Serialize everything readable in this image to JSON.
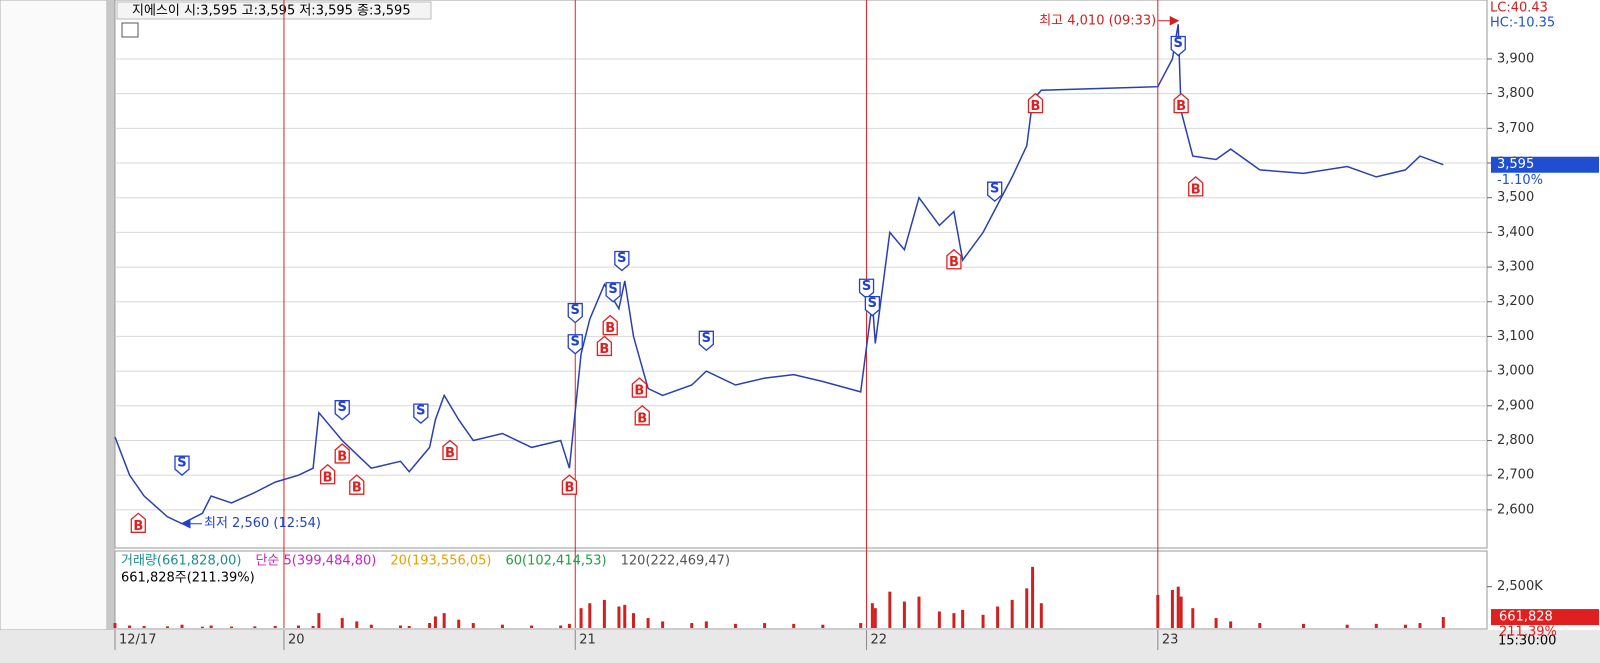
{
  "chart_data": {
    "type": "line",
    "title": "지에스이 시:3,595 고:3,595 저:3,595 종:3,595",
    "color": "#2a3fb0",
    "xlim": [
      0.42,
      5.13
    ],
    "xticks": [
      {
        "value": 0.42,
        "label": "12/17"
      },
      {
        "value": 1,
        "label": "20"
      },
      {
        "value": 2,
        "label": "21"
      },
      {
        "value": 3,
        "label": "22"
      },
      {
        "value": 4,
        "label": "23"
      }
    ],
    "ylim": [
      2490,
      4070
    ],
    "yticks": [
      {
        "value": 2600,
        "label": "2,600"
      },
      {
        "value": 2700,
        "label": "2,700"
      },
      {
        "value": 2800,
        "label": "2,800"
      },
      {
        "value": 2900,
        "label": "2,900"
      },
      {
        "value": 3000,
        "label": "3,000"
      },
      {
        "value": 3100,
        "label": "3,100"
      },
      {
        "value": 3200,
        "label": "3,200"
      },
      {
        "value": 3300,
        "label": "3,300"
      },
      {
        "value": 3400,
        "label": "3,400"
      },
      {
        "value": 3500,
        "label": "3,500"
      },
      {
        "value": 3600,
        "label": "3,600"
      },
      {
        "value": 3700,
        "label": "3,700"
      },
      {
        "value": 3800,
        "label": "3,800"
      },
      {
        "value": 3900,
        "label": "3,900"
      }
    ],
    "grid": true,
    "x": [
      0.42,
      0.47,
      0.52,
      0.6,
      0.65,
      0.72,
      0.75,
      0.82,
      0.9,
      0.97,
      1.05,
      1.1,
      1.12,
      1.2,
      1.25,
      1.3,
      1.4,
      1.43,
      1.5,
      1.52,
      1.55,
      1.6,
      1.65,
      1.75,
      1.85,
      1.95,
      1.98,
      2.02,
      2.05,
      2.1,
      2.15,
      2.17,
      2.2,
      2.25,
      2.3,
      2.4,
      2.45,
      2.55,
      2.65,
      2.75,
      2.85,
      2.98,
      3.02,
      3.03,
      3.08,
      3.13,
      3.18,
      3.25,
      3.3,
      3.33,
      3.4,
      3.45,
      3.5,
      3.55,
      3.57,
      3.6,
      4.0,
      4.05,
      4.07,
      4.08,
      4.12,
      4.2,
      4.25,
      4.35,
      4.5,
      4.65,
      4.75,
      4.85,
      4.9,
      4.98
    ],
    "values": [
      2810,
      2700,
      2640,
      2580,
      2560,
      2590,
      2640,
      2620,
      2650,
      2680,
      2700,
      2720,
      2880,
      2800,
      2760,
      2720,
      2740,
      2710,
      2780,
      2860,
      2930,
      2860,
      2800,
      2820,
      2780,
      2800,
      2720,
      3050,
      3150,
      3250,
      3180,
      3260,
      3100,
      2950,
      2930,
      2960,
      3000,
      2960,
      2980,
      2990,
      2970,
      2940,
      3200,
      3080,
      3400,
      3350,
      3500,
      3420,
      3460,
      3320,
      3400,
      3480,
      3560,
      3650,
      3780,
      3810,
      3820,
      3900,
      4000,
      3750,
      3620,
      3610,
      3640,
      3580,
      3570,
      3590,
      3560,
      3580,
      3620,
      3595
    ],
    "signals": [
      {
        "label": "B",
        "x": 0.5,
        "y": 2590
      },
      {
        "label": "B",
        "x": 1.15,
        "y": 2730
      },
      {
        "label": "B",
        "x": 1.2,
        "y": 2790
      },
      {
        "label": "B",
        "x": 1.25,
        "y": 2700
      },
      {
        "label": "B",
        "x": 1.57,
        "y": 2800
      },
      {
        "label": "B",
        "x": 1.98,
        "y": 2700
      },
      {
        "label": "B",
        "x": 2.1,
        "y": 3100
      },
      {
        "label": "B",
        "x": 2.12,
        "y": 3160
      },
      {
        "label": "B",
        "x": 2.22,
        "y": 2980
      },
      {
        "label": "B",
        "x": 2.23,
        "y": 2900
      },
      {
        "label": "B",
        "x": 3.3,
        "y": 3350
      },
      {
        "label": "B",
        "x": 3.58,
        "y": 3800
      },
      {
        "label": "B",
        "x": 4.08,
        "y": 3800
      },
      {
        "label": "B",
        "x": 4.13,
        "y": 3560
      },
      {
        "label": "S",
        "x": 0.65,
        "y": 2700
      },
      {
        "label": "S",
        "x": 1.2,
        "y": 2860
      },
      {
        "label": "S",
        "x": 1.47,
        "y": 2850
      },
      {
        "label": "S",
        "x": 2.0,
        "y": 3050
      },
      {
        "label": "S",
        "x": 2.0,
        "y": 3140
      },
      {
        "label": "S",
        "x": 2.13,
        "y": 3200
      },
      {
        "label": "S",
        "x": 2.16,
        "y": 3290
      },
      {
        "label": "S",
        "x": 2.45,
        "y": 3060
      },
      {
        "label": "S",
        "x": 3.0,
        "y": 3210
      },
      {
        "label": "S",
        "x": 3.02,
        "y": 3160
      },
      {
        "label": "S",
        "x": 3.44,
        "y": 3490
      },
      {
        "label": "S",
        "x": 4.07,
        "y": 3910
      }
    ],
    "annotations": [
      {
        "text": "최저 2,560 (12:54)",
        "x": 0.65,
        "y": 2560
      },
      {
        "text": "최고 4,010 (09:33)",
        "x": 4.07,
        "y": 4010
      }
    ],
    "right_labels": [
      "LC:40.43",
      "HC:-10.35"
    ],
    "last_price": {
      "value": 3595,
      "label": "3,595",
      "change": "-1.10%"
    },
    "volume": {
      "legend": [
        "거래량(661,828,00)",
        "단순 5(399,484,80)",
        "20(193,556,05)",
        "60(102,414,53)",
        "120(222,469,47)"
      ],
      "legend_colors": [
        "#1a8f8f",
        "#d020c0",
        "#e8a000",
        "#20a040",
        "#555555"
      ],
      "summary": "661,828주(211.39%)",
      "color": "#d02020",
      "ylim": [
        0,
        4600000
      ],
      "yticks": [
        {
          "value": 2500000,
          "label": "2,500K"
        }
      ],
      "values": [
        300000,
        150000,
        120000,
        100000,
        200000,
        80000,
        150000,
        90000,
        100000,
        120000,
        150000,
        120000,
        900000,
        600000,
        400000,
        200000,
        150000,
        120000,
        300000,
        700000,
        900000,
        500000,
        300000,
        200000,
        150000,
        150000,
        250000,
        1200000,
        1500000,
        1700000,
        1300000,
        1400000,
        900000,
        600000,
        400000,
        300000,
        400000,
        250000,
        300000,
        250000,
        200000,
        300000,
        1500000,
        1200000,
        2200000,
        1600000,
        1900000,
        1000000,
        900000,
        1100000,
        800000,
        1300000,
        1700000,
        2400000,
        3700000,
        1500000,
        2000000,
        2300000,
        2500000,
        1900000,
        1200000,
        600000,
        400000,
        300000,
        250000,
        200000,
        250000,
        200000,
        300000,
        661828
      ],
      "last": {
        "value": 661828,
        "label": "661,828",
        "ratio": "211.39%"
      }
    },
    "time_label": "15:30:00"
  }
}
